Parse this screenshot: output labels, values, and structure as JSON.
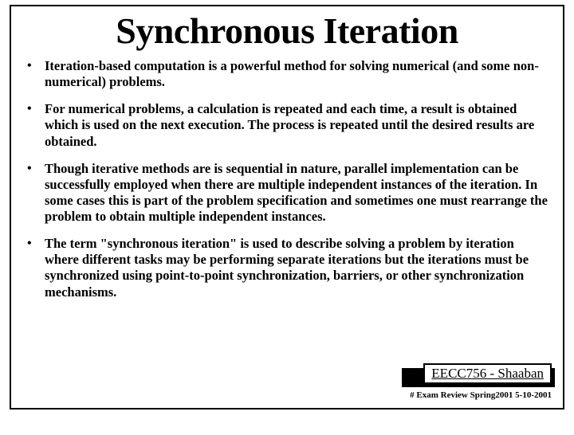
{
  "title": "Synchronous Iteration",
  "bullets": [
    "Iteration-based computation is a powerful method for solving numerical (and some non-numerical) problems.",
    "For numerical problems, a calculation is repeated and each time, a result is obtained which is used on the next execution.  The process is repeated until the desired results are obtained.",
    "Though iterative methods are  is sequential in nature, parallel implementation can be successfully employed when there are multiple independent instances of the iteration.  In some cases this is part of the problem specification and sometimes one must rearrange the problem to obtain multiple independent instances.",
    "The term \"synchronous iteration\" is used to describe solving a problem by iteration where different tasks may be performing separate iterations but the iterations must be synchronized  using point-to-point synchronization,  barriers, or other synchronization mechanisms."
  ],
  "footer": {
    "course": "EECC756 - Shaaban",
    "sub": "#   Exam Review   Spring2001  5-10-2001"
  },
  "colors": {
    "border": "#000000",
    "text": "#000000",
    "background": "#ffffff"
  },
  "fonts": {
    "title_size": 46,
    "body_size": 16.5,
    "footer_size": 17,
    "sub_footer_size": 11
  }
}
